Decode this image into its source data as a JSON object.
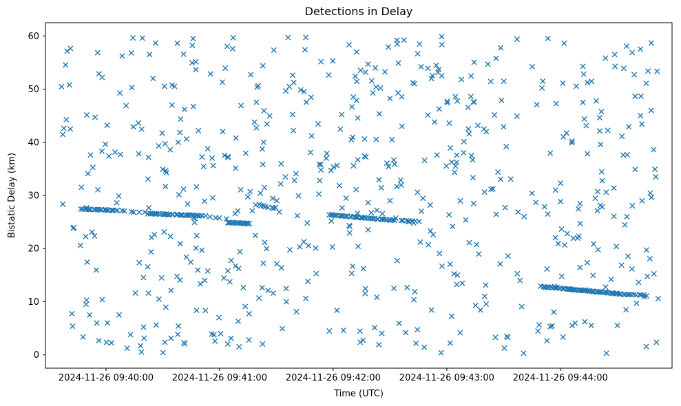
{
  "chart_data": {
    "type": "scatter",
    "title": "Detections in Delay",
    "xlabel": "Time (UTC)",
    "ylabel": "Bistatic Delay (km)",
    "marker": {
      "symbol": "x",
      "color": "#1f77b4",
      "size": 6.4,
      "stroke_width": 1.4
    },
    "x_axis": {
      "lim": [
        -32,
        299
      ],
      "units": "seconds after 2024-11-26 09:40:00 UTC",
      "ticks": [
        {
          "t": 0,
          "label": "2024-11-26 09:40:00"
        },
        {
          "t": 60,
          "label": "2024-11-26 09:41:00"
        },
        {
          "t": 120,
          "label": "2024-11-26 09:42:00"
        },
        {
          "t": 180,
          "label": "2024-11-26 09:43:00"
        },
        {
          "t": 240,
          "label": "2024-11-26 09:44:00"
        }
      ]
    },
    "y_axis": {
      "lim": [
        -2.5,
        62.5
      ],
      "ticks": [
        0,
        10,
        20,
        30,
        40,
        50,
        60
      ]
    },
    "noise": {
      "seed": 42,
      "count": 600,
      "t_range": [
        -24,
        293
      ],
      "y_range": [
        0.3,
        59.9
      ]
    },
    "tracks": [
      {
        "t0": -13,
        "t1": 6,
        "y0": 27.45,
        "y1": 27.15,
        "count": 22,
        "jt": 1.2,
        "jy": 0.12
      },
      {
        "t0": 8,
        "t1": 20,
        "y0": 27.1,
        "y1": 26.8,
        "count": 6,
        "jt": 1.5,
        "jy": 0.15
      },
      {
        "t0": 22,
        "t1": 52,
        "y0": 26.6,
        "y1": 26.15,
        "count": 36,
        "jt": 1.2,
        "jy": 0.12
      },
      {
        "t0": 55,
        "t1": 63,
        "y0": 26.0,
        "y1": 25.6,
        "count": 4,
        "jt": 1.5,
        "jy": 0.2
      },
      {
        "t0": 64,
        "t1": 76,
        "y0": 24.9,
        "y1": 24.7,
        "count": 22,
        "jt": 1.0,
        "jy": 0.1
      },
      {
        "t0": 79,
        "t1": 90,
        "y0": 28.3,
        "y1": 27.6,
        "count": 9,
        "jt": 1.2,
        "jy": 0.25
      },
      {
        "t0": 118,
        "t1": 153,
        "y0": 26.35,
        "y1": 25.3,
        "count": 40,
        "jt": 1.0,
        "jy": 0.1
      },
      {
        "t0": 156,
        "t1": 165,
        "y0": 25.25,
        "y1": 25.1,
        "count": 8,
        "jt": 1.0,
        "jy": 0.1
      },
      {
        "t0": 230,
        "t1": 272,
        "y0": 12.85,
        "y1": 11.45,
        "count": 55,
        "jt": 0.8,
        "jy": 0.1
      },
      {
        "t0": 273,
        "t1": 284,
        "y0": 11.4,
        "y1": 11.3,
        "count": 10,
        "jt": 1.2,
        "jy": 0.12
      }
    ],
    "layout_hints": {
      "grid": false,
      "legend": "none",
      "marker_style": "x cross markers, matplotlib default blue"
    }
  }
}
